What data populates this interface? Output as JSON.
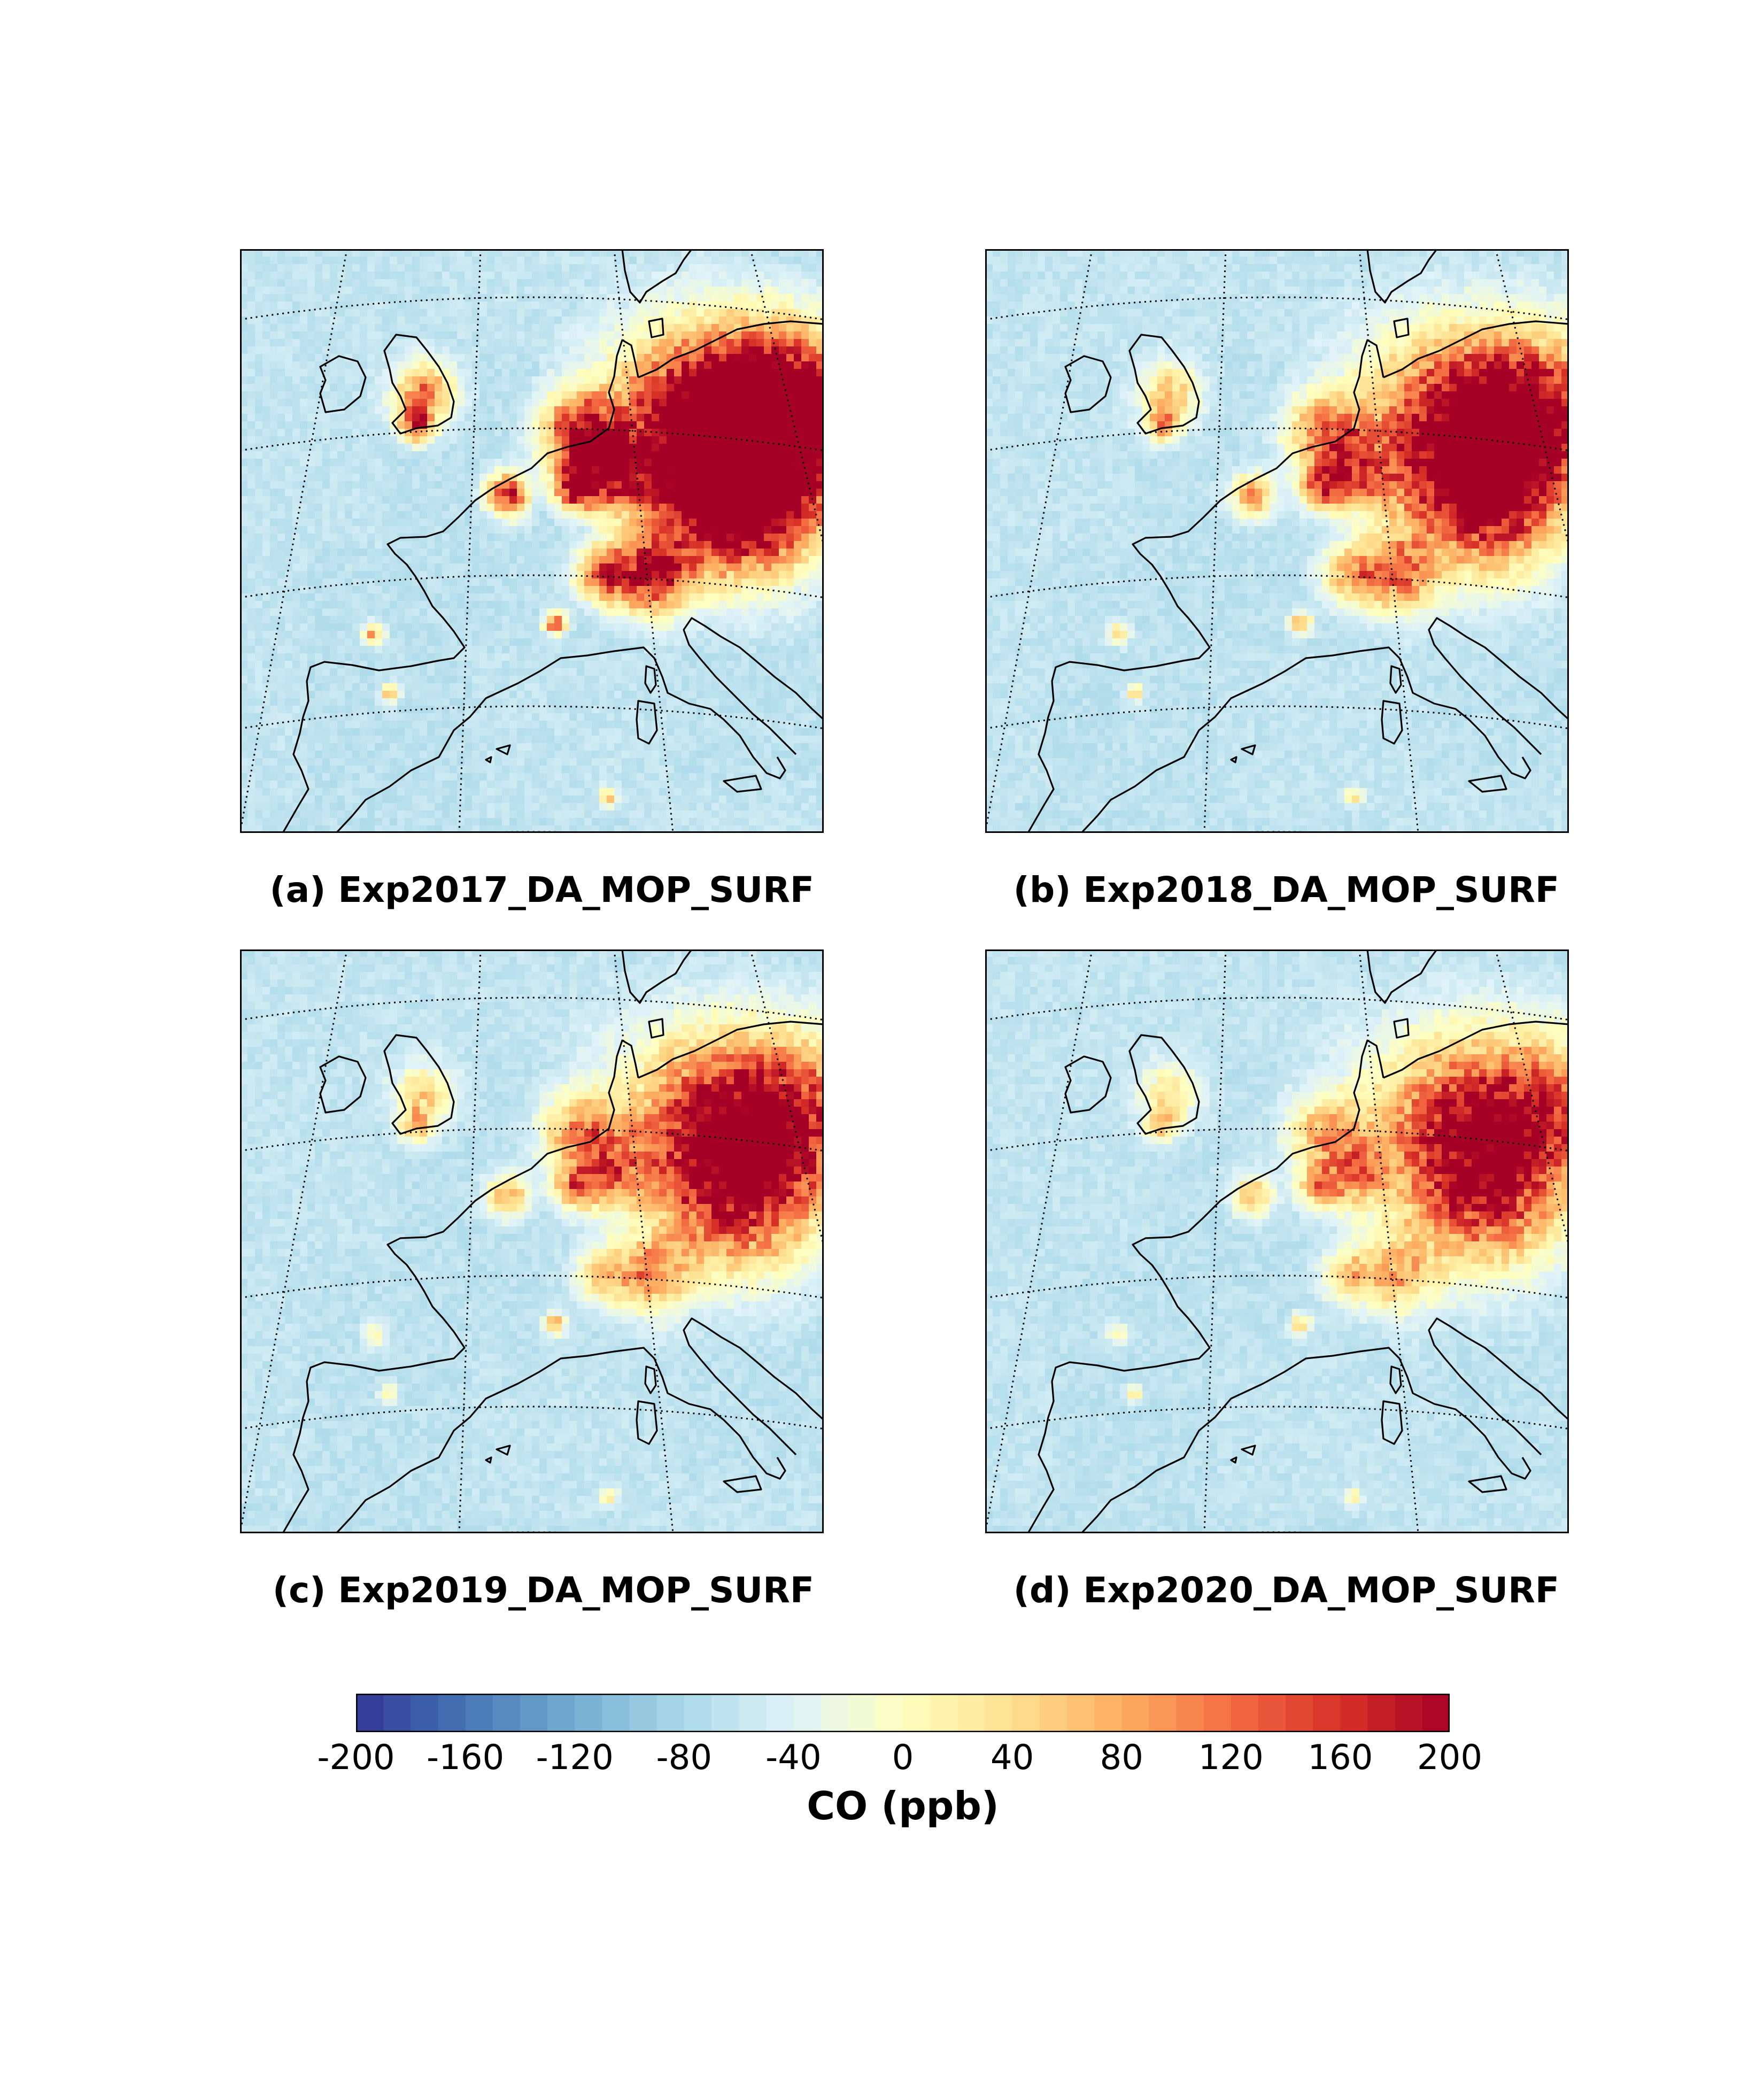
{
  "figure": {
    "panels": [
      {
        "id": "a",
        "caption": "(a) Exp2017_DA_MOP_SURF",
        "intensity": 1.0
      },
      {
        "id": "b",
        "caption": "(b) Exp2018_DA_MOP_SURF",
        "intensity": 0.72
      },
      {
        "id": "c",
        "caption": "(c) Exp2019_DA_MOP_SURF",
        "intensity": 0.62
      },
      {
        "id": "d",
        "caption": "(d) Exp2020_DA_MOP_SURF",
        "intensity": 0.55
      }
    ],
    "colorbar": {
      "label": "CO (ppb)",
      "min": -200,
      "max": 200,
      "ticks": [
        "-200",
        "-160",
        "-120",
        "-80",
        "-40",
        "0",
        "40",
        "80",
        "120",
        "160",
        "200"
      ],
      "colors": [
        "#313695",
        "#4575b4",
        "#74add1",
        "#abd9e9",
        "#e0f3f8",
        "#ffffbf",
        "#fee090",
        "#fdae61",
        "#f46d43",
        "#d73027",
        "#a50026"
      ]
    },
    "colormap_name": "RdYlBu_r",
    "projection": "lambert-conformal-europe"
  }
}
